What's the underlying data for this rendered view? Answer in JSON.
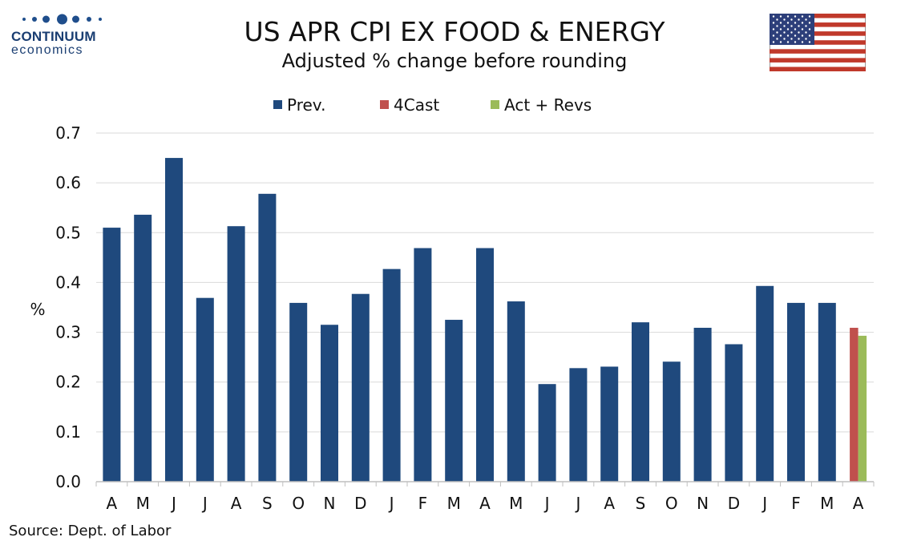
{
  "logo": {
    "name": "CONTINUUM",
    "sub": "economics"
  },
  "header": {
    "title": "US APR CPI EX FOOD & ENERGY",
    "subtitle": "Adjusted % change before rounding"
  },
  "source": "Source: Dept. of Labor",
  "colors": {
    "prev": "#1f497d",
    "forecast": "#c0504d",
    "actual": "#9bbb59",
    "grid": "#d9d9d9",
    "axis": "#bfbfbf"
  },
  "chart_data": {
    "type": "bar",
    "ylabel": "%",
    "ylim": [
      0,
      0.7
    ],
    "yticks": [
      "0.0",
      "0.1",
      "0.2",
      "0.3",
      "0.4",
      "0.5",
      "0.6",
      "0.7"
    ],
    "grid": true,
    "legend_position": "top",
    "legend": [
      "Prev.",
      "4Cast",
      "Act + Revs"
    ],
    "categories": [
      "A",
      "M",
      "J",
      "J",
      "A",
      "S",
      "O",
      "N",
      "D",
      "J",
      "F",
      "M",
      "A",
      "M",
      "J",
      "J",
      "A",
      "S",
      "O",
      "N",
      "D",
      "J",
      "F",
      "M",
      "A"
    ],
    "series": [
      {
        "name": "Prev.",
        "values": [
          0.51,
          0.536,
          0.65,
          0.369,
          0.513,
          0.578,
          0.359,
          0.315,
          0.377,
          0.427,
          0.469,
          0.325,
          0.469,
          0.362,
          0.196,
          0.228,
          0.231,
          0.32,
          0.241,
          0.309,
          0.276,
          0.393,
          0.359,
          0.359,
          null
        ]
      },
      {
        "name": "4Cast",
        "values": [
          null,
          null,
          null,
          null,
          null,
          null,
          null,
          null,
          null,
          null,
          null,
          null,
          null,
          null,
          null,
          null,
          null,
          null,
          null,
          null,
          null,
          null,
          null,
          null,
          0.309
        ]
      },
      {
        "name": "Act + Revs",
        "values": [
          null,
          null,
          null,
          null,
          null,
          null,
          null,
          null,
          null,
          null,
          null,
          null,
          null,
          null,
          null,
          null,
          null,
          null,
          null,
          null,
          null,
          null,
          null,
          null,
          0.293
        ]
      }
    ]
  }
}
